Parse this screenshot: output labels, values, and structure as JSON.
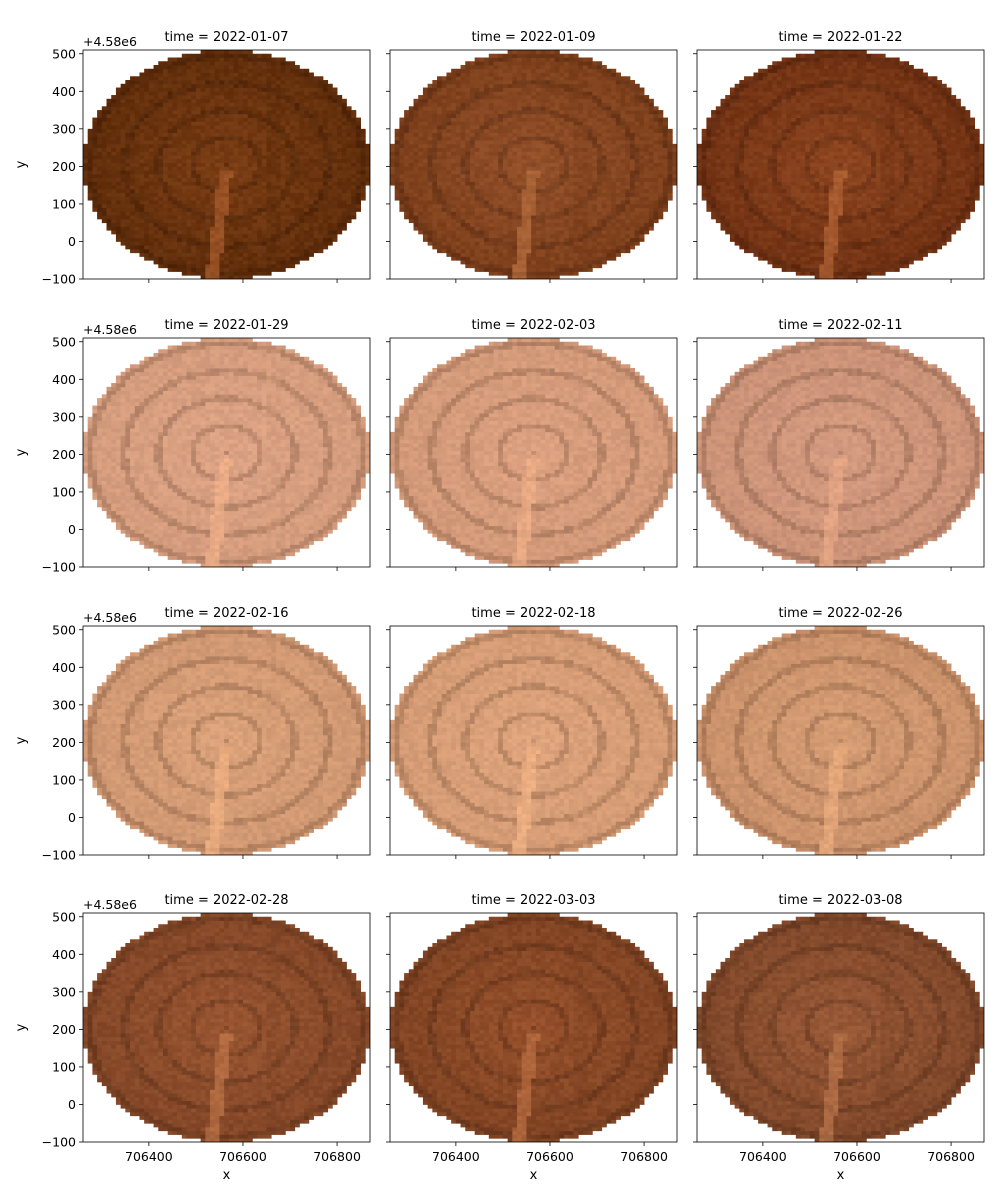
{
  "chart_data": {
    "type": "heatmap",
    "facet_grid": {
      "rows": 4,
      "cols": 3
    },
    "xlabel": "x",
    "ylabel": "y",
    "y_offset_label": "+4.58e6",
    "xlim": [
      706260,
      706870
    ],
    "ylim": [
      -100,
      510
    ],
    "x_ticks": [
      706400,
      706600,
      706800
    ],
    "x_tick_labels": [
      "706400",
      "706600",
      "706800"
    ],
    "y_ticks": [
      -100,
      0,
      100,
      200,
      300,
      400,
      500
    ],
    "y_tick_labels": [
      "−100",
      "0",
      "100",
      "200",
      "300",
      "400",
      "500"
    ],
    "disk": {
      "center_x": 706565,
      "center_y": 205,
      "radius_x": 305,
      "radius_y": 305
    },
    "panels": [
      {
        "title": "time = 2022-01-07",
        "color_center": "#7a3d14",
        "color_edge": "#5e2c0a",
        "stripe": "#a4592a"
      },
      {
        "title": "time = 2022-01-09",
        "color_center": "#93502a",
        "color_edge": "#7a3d19",
        "stripe": "#b36b3c"
      },
      {
        "title": "time = 2022-01-22",
        "color_center": "#8e4620",
        "color_edge": "#6e3012",
        "stripe": "#b06334"
      },
      {
        "title": "time = 2022-01-29",
        "color_center": "#dda385",
        "color_edge": "#d39b7c",
        "stripe": "#f0b088"
      },
      {
        "title": "time = 2022-02-03",
        "color_center": "#dca180",
        "color_edge": "#d19878",
        "stripe": "#eeae86"
      },
      {
        "title": "time = 2022-02-11",
        "color_center": "#d59b80",
        "color_edge": "#c99176",
        "stripe": "#e8a886"
      },
      {
        "title": "time = 2022-02-16",
        "color_center": "#dba27a",
        "color_edge": "#cf9772",
        "stripe": "#eeb080"
      },
      {
        "title": "time = 2022-02-18",
        "color_center": "#dea47c",
        "color_edge": "#d39a74",
        "stripe": "#f2b384"
      },
      {
        "title": "time = 2022-02-26",
        "color_center": "#d69d74",
        "color_edge": "#c9906a",
        "stripe": "#eaac7c"
      },
      {
        "title": "time = 2022-02-28",
        "color_center": "#9a5632",
        "color_edge": "#804526",
        "stripe": "#bb7246"
      },
      {
        "title": "time = 2022-03-03",
        "color_center": "#97512c",
        "color_edge": "#7d4222",
        "stripe": "#b86d40"
      },
      {
        "title": "time = 2022-03-08",
        "color_center": "#9a5a38",
        "color_edge": "#7c4528",
        "stripe": "#b8744a"
      }
    ]
  }
}
